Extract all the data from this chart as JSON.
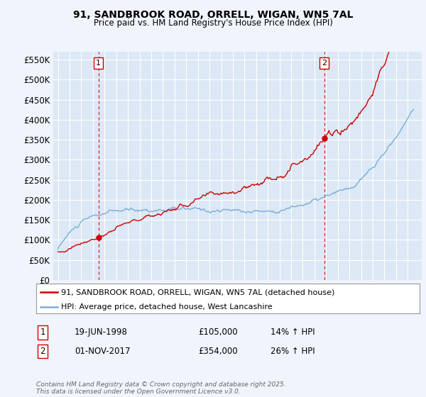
{
  "title1": "91, SANDBROOK ROAD, ORRELL, WIGAN, WN5 7AL",
  "title2": "Price paid vs. HM Land Registry's House Price Index (HPI)",
  "legend_label1": "91, SANDBROOK ROAD, ORRELL, WIGAN, WN5 7AL (detached house)",
  "legend_label2": "HPI: Average price, detached house, West Lancashire",
  "annotation1_label": "1",
  "annotation1_date": "19-JUN-1998",
  "annotation1_price": "£105,000",
  "annotation1_hpi": "14% ↑ HPI",
  "annotation1_year": 1998.47,
  "annotation1_value": 105000,
  "annotation2_label": "2",
  "annotation2_date": "01-NOV-2017",
  "annotation2_price": "£354,000",
  "annotation2_hpi": "26% ↑ HPI",
  "annotation2_year": 2017.84,
  "annotation2_value": 354000,
  "line1_color": "#cc0000",
  "line2_color": "#7aaed6",
  "background_color": "#f0f4fc",
  "plot_bg_color": "#dce8f5",
  "grid_color": "#ffffff",
  "footer_text": "Contains HM Land Registry data © Crown copyright and database right 2025.\nThis data is licensed under the Open Government Licence v3.0.",
  "ylim": [
    0,
    570000
  ],
  "yticks": [
    0,
    50000,
    100000,
    150000,
    200000,
    250000,
    300000,
    350000,
    400000,
    450000,
    500000,
    550000
  ],
  "ytick_labels": [
    "£0",
    "£50K",
    "£100K",
    "£150K",
    "£200K",
    "£250K",
    "£300K",
    "£350K",
    "£400K",
    "£450K",
    "£500K",
    "£550K"
  ],
  "hpi_seed": 10,
  "red_seed": 77
}
